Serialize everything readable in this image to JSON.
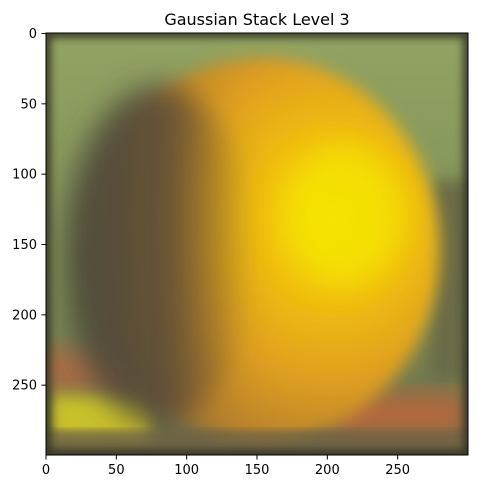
{
  "figure": {
    "title": "Gaussian Stack Level 3",
    "x_ticks": [
      "0",
      "50",
      "100",
      "150",
      "200",
      "250"
    ],
    "y_ticks": [
      "0",
      "50",
      "100",
      "150",
      "200",
      "250"
    ]
  },
  "image": {
    "subject": "blurred orange in front of green background",
    "colors": {
      "background_green": "#8a9a5e",
      "orange_bright": "#f2c20c",
      "orange_mid": "#e0a020",
      "shadow_dark": "#5a5040",
      "surface_red": "#b8683e",
      "foreground_yellow": "#c9c12a"
    }
  }
}
